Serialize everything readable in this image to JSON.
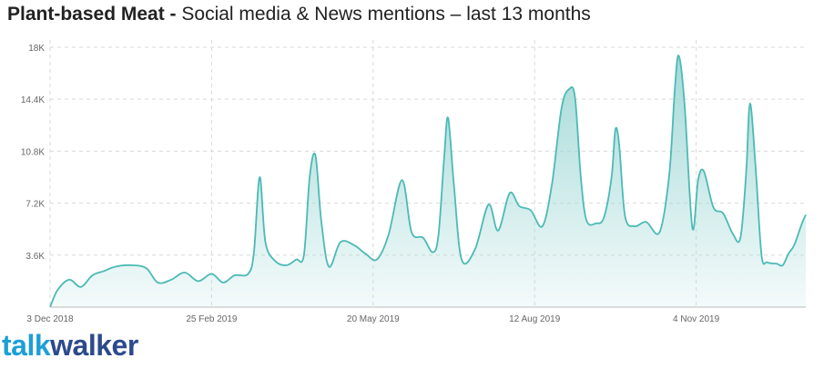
{
  "title": {
    "bold": "Plant-based Meat -",
    "rest": "Social media & News mentions – last 13 months"
  },
  "brand": {
    "part1": "talk",
    "part2": "walker"
  },
  "colors": {
    "area_fill": "#9fd8d6",
    "line": "#4bbab5",
    "grid": "#d9d9d9"
  },
  "chart_data": {
    "type": "area",
    "title": "Plant-based Meat - Social media & News mentions – last 13 months",
    "xlabel": "",
    "ylabel": "",
    "ylim": [
      0,
      18500
    ],
    "yticks": [
      3600,
      7200,
      10800,
      14400,
      18000
    ],
    "ytick_labels": [
      "3.6K",
      "7.2K",
      "10.8K",
      "14.4K",
      "18K"
    ],
    "x_start": "2018-12-03",
    "x_end": "2019-12-31",
    "xticks": [
      "2018-12-03",
      "2019-02-25",
      "2019-05-20",
      "2019-08-12",
      "2019-11-04"
    ],
    "xtick_labels": [
      "3 Dec 2018",
      "25 Feb 2019",
      "20 May 2019",
      "12 Aug 2019",
      "4 Nov 2019"
    ],
    "grid": true,
    "points": [
      [
        "2018-12-03",
        0
      ],
      [
        "2018-12-07",
        1200
      ],
      [
        "2018-12-13",
        1900
      ],
      [
        "2018-12-19",
        1400
      ],
      [
        "2018-12-25",
        2200
      ],
      [
        "2018-12-31",
        2500
      ],
      [
        "2019-01-06",
        2800
      ],
      [
        "2019-01-14",
        2900
      ],
      [
        "2019-01-22",
        2700
      ],
      [
        "2019-01-28",
        1700
      ],
      [
        "2019-02-04",
        1900
      ],
      [
        "2019-02-11",
        2400
      ],
      [
        "2019-02-18",
        1800
      ],
      [
        "2019-02-25",
        2300
      ],
      [
        "2019-03-03",
        1700
      ],
      [
        "2019-03-09",
        2200
      ],
      [
        "2019-03-16",
        2300
      ],
      [
        "2019-03-19",
        3800
      ],
      [
        "2019-03-22",
        9000
      ],
      [
        "2019-03-25",
        4500
      ],
      [
        "2019-03-30",
        3200
      ],
      [
        "2019-04-05",
        2900
      ],
      [
        "2019-04-10",
        3300
      ],
      [
        "2019-04-14",
        3600
      ],
      [
        "2019-04-17",
        9000
      ],
      [
        "2019-04-20",
        10500
      ],
      [
        "2019-04-23",
        6000
      ],
      [
        "2019-04-27",
        2800
      ],
      [
        "2019-05-03",
        4500
      ],
      [
        "2019-05-10",
        4300
      ],
      [
        "2019-05-16",
        3700
      ],
      [
        "2019-05-22",
        3300
      ],
      [
        "2019-05-28",
        5000
      ],
      [
        "2019-06-04",
        8800
      ],
      [
        "2019-06-09",
        5200
      ],
      [
        "2019-06-15",
        4800
      ],
      [
        "2019-06-20",
        3800
      ],
      [
        "2019-06-23",
        5000
      ],
      [
        "2019-06-26",
        10500
      ],
      [
        "2019-06-28",
        13100
      ],
      [
        "2019-07-01",
        8500
      ],
      [
        "2019-07-05",
        3300
      ],
      [
        "2019-07-12",
        4000
      ],
      [
        "2019-07-19",
        7100
      ],
      [
        "2019-07-24",
        5300
      ],
      [
        "2019-07-30",
        7900
      ],
      [
        "2019-08-04",
        7000
      ],
      [
        "2019-08-10",
        6700
      ],
      [
        "2019-08-16",
        5600
      ],
      [
        "2019-08-21",
        8500
      ],
      [
        "2019-08-26",
        13800
      ],
      [
        "2019-08-30",
        15100
      ],
      [
        "2019-09-02",
        14500
      ],
      [
        "2019-09-05",
        9000
      ],
      [
        "2019-09-08",
        6000
      ],
      [
        "2019-09-13",
        5800
      ],
      [
        "2019-09-17",
        6200
      ],
      [
        "2019-09-21",
        9000
      ],
      [
        "2019-09-23",
        12300
      ],
      [
        "2019-09-25",
        11200
      ],
      [
        "2019-09-28",
        6300
      ],
      [
        "2019-10-03",
        5600
      ],
      [
        "2019-10-09",
        5900
      ],
      [
        "2019-10-16",
        5200
      ],
      [
        "2019-10-21",
        9200
      ],
      [
        "2019-10-24",
        15300
      ],
      [
        "2019-10-26",
        17400
      ],
      [
        "2019-10-29",
        14000
      ],
      [
        "2019-11-02",
        5500
      ],
      [
        "2019-11-05",
        8800
      ],
      [
        "2019-11-08",
        9400
      ],
      [
        "2019-11-13",
        6900
      ],
      [
        "2019-11-18",
        6500
      ],
      [
        "2019-11-23",
        5100
      ],
      [
        "2019-11-27",
        4800
      ],
      [
        "2019-11-30",
        9300
      ],
      [
        "2019-12-02",
        14100
      ],
      [
        "2019-12-05",
        9500
      ],
      [
        "2019-12-08",
        3600
      ],
      [
        "2019-12-11",
        3100
      ],
      [
        "2019-12-16",
        3000
      ],
      [
        "2019-12-19",
        2900
      ],
      [
        "2019-12-22",
        3700
      ],
      [
        "2019-12-25",
        4300
      ],
      [
        "2019-12-29",
        5800
      ],
      [
        "2019-12-31",
        6400
      ]
    ]
  }
}
